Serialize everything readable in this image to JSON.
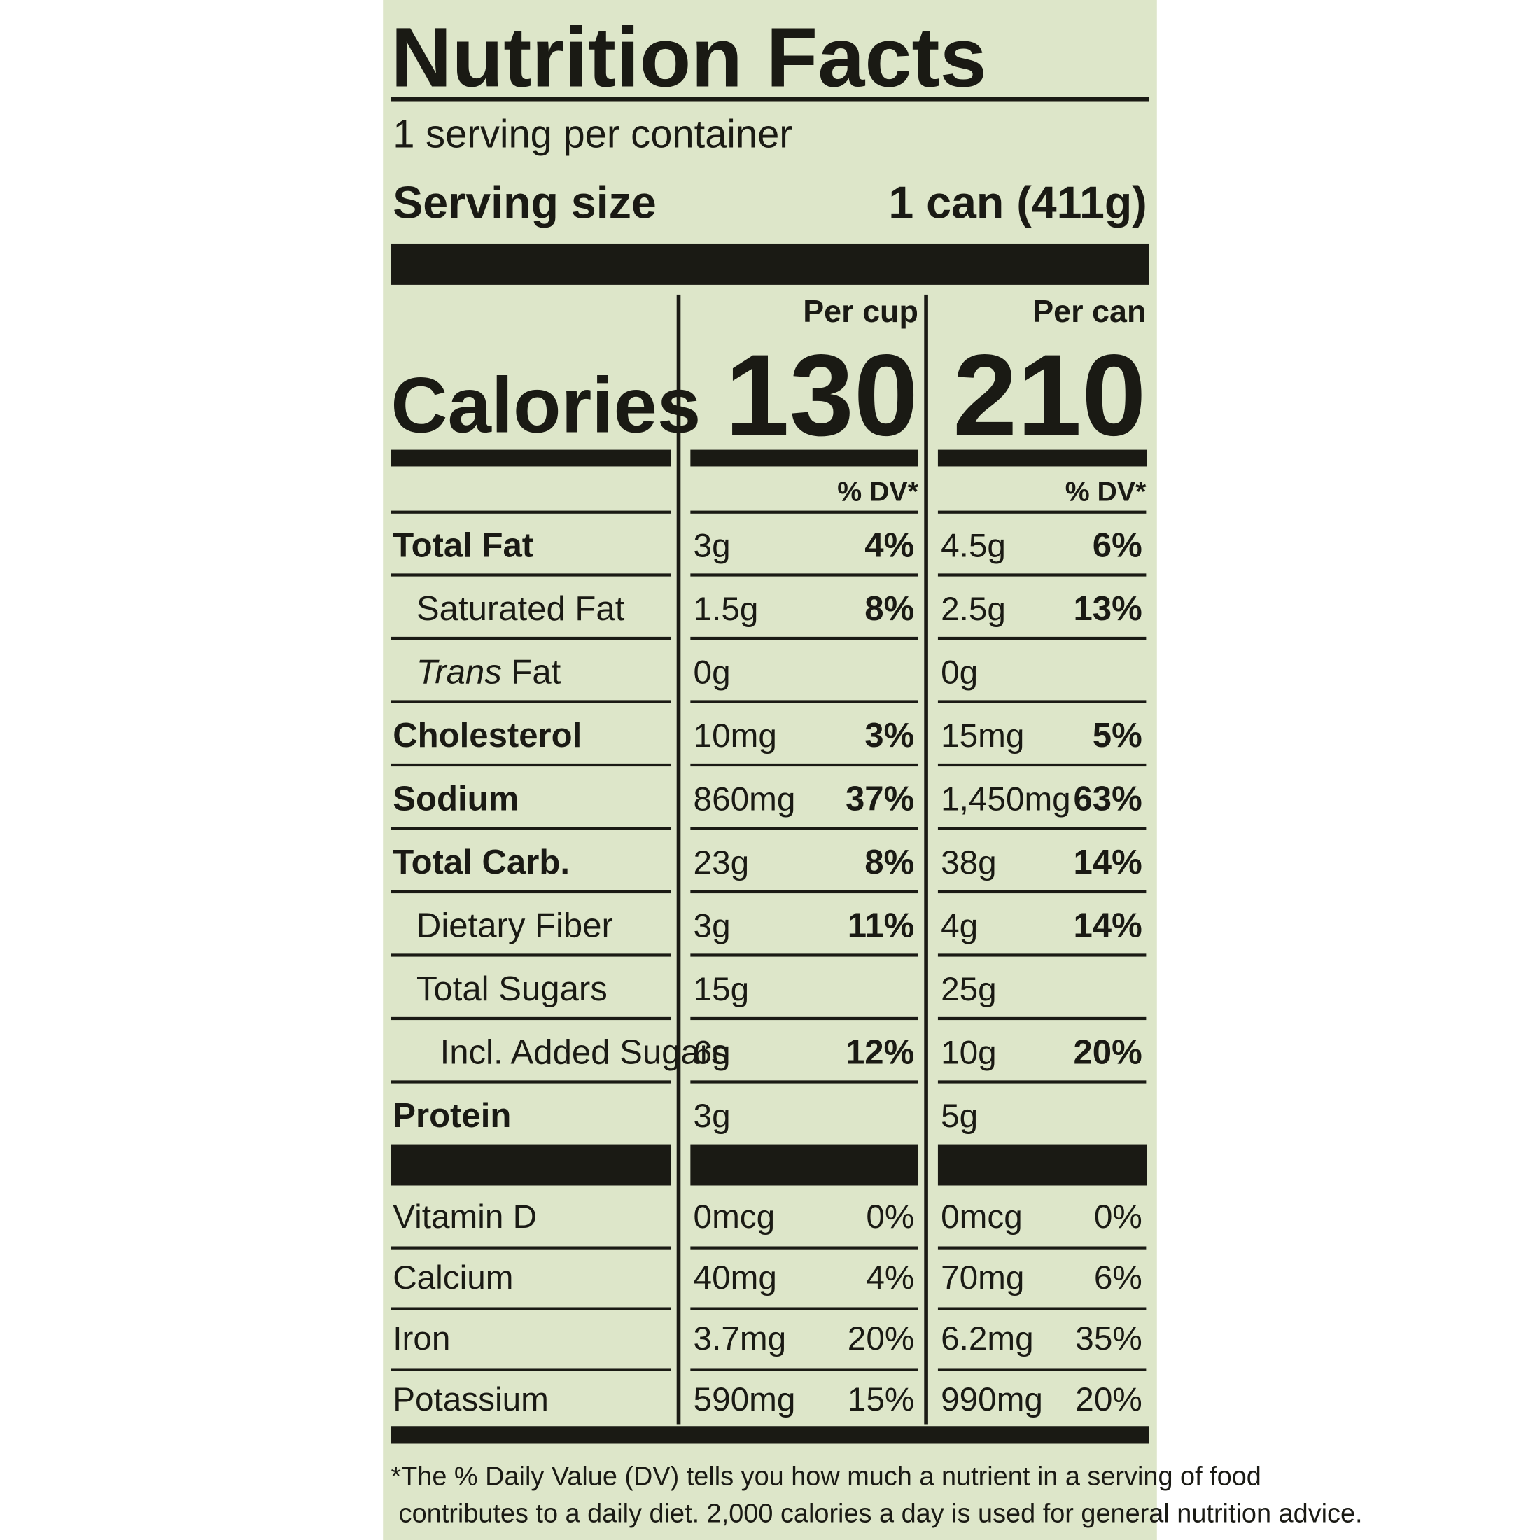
{
  "title": "Nutrition Facts",
  "servings_per_container": "1 serving per container",
  "serving_size": {
    "label": "Serving size",
    "value": "1 can (411g)"
  },
  "columns": [
    "Per cup",
    "Per can"
  ],
  "calories": {
    "label": "Calories",
    "values": [
      "130",
      "210"
    ]
  },
  "dv_header": [
    "% DV*",
    "% DV*"
  ],
  "nutrients": [
    {
      "name": "Total Fat",
      "level": 0,
      "cup": [
        "3g",
        "4%"
      ],
      "can": [
        "4.5g",
        "6%"
      ]
    },
    {
      "name": "Saturated Fat",
      "level": 1,
      "cup": [
        "1.5g",
        "8%"
      ],
      "can": [
        "2.5g",
        "13%"
      ]
    },
    {
      "name_italic": "Trans",
      "name": "Fat",
      "level": 1,
      "cup": [
        "0g"
      ],
      "can": [
        "0g"
      ]
    },
    {
      "name": "Cholesterol",
      "level": 0,
      "cup": [
        "10mg",
        "3%"
      ],
      "can": [
        "15mg",
        "5%"
      ]
    },
    {
      "name": "Sodium",
      "level": 0,
      "cup": [
        "860mg",
        "37%"
      ],
      "can": [
        "1,450mg",
        "63%"
      ]
    },
    {
      "name": "Total Carb.",
      "level": 0,
      "cup": [
        "23g",
        "8%"
      ],
      "can": [
        "38g",
        "14%"
      ]
    },
    {
      "name": "Dietary Fiber",
      "level": 1,
      "cup": [
        "3g",
        "11%"
      ],
      "can": [
        "4g",
        "14%"
      ]
    },
    {
      "name": "Total Sugars",
      "level": 1,
      "cup": [
        "15g"
      ],
      "can": [
        "25g"
      ]
    },
    {
      "name": "Incl. Added Sugars",
      "level": 2,
      "cup": [
        "6g",
        "12%"
      ],
      "can": [
        "10g",
        "20%"
      ]
    },
    {
      "name": "Protein",
      "level": 0,
      "cup": [
        "3g"
      ],
      "can": [
        "5g"
      ]
    }
  ],
  "vitamins": [
    {
      "name": "Vitamin D",
      "cup": [
        "0mcg",
        "0%"
      ],
      "can": [
        "0mcg",
        "0%"
      ]
    },
    {
      "name": "Calcium",
      "cup": [
        "40mg",
        "4%"
      ],
      "can": [
        "70mg",
        "6%"
      ]
    },
    {
      "name": "Iron",
      "cup": [
        "3.7mg",
        "20%"
      ],
      "can": [
        "6.2mg",
        "35%"
      ]
    },
    {
      "name": "Potassium",
      "cup": [
        "590mg",
        "15%"
      ],
      "can": [
        "990mg",
        "20%"
      ]
    }
  ],
  "footnote": [
    "*The % Daily Value (DV) tells you how much a nutrient in a serving of food",
    "contributes to a daily diet. 2,000 calories a day is used for general nutrition advice."
  ]
}
